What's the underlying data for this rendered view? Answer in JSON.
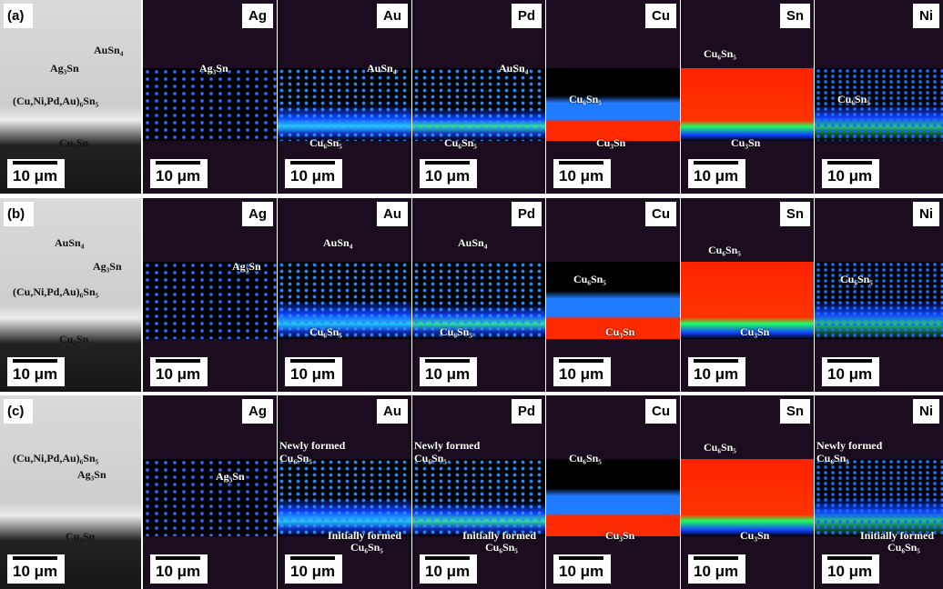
{
  "rows": [
    {
      "label": "(a)",
      "panels": [
        {
          "scale_bar": "10 μm",
          "annotations": [
            "Ag₃Sn",
            "AuSn₄",
            "(Cu,Ni,Pd,Au)₆Sn₅",
            "Cu₃Sn"
          ]
        },
        {
          "element": "Ag",
          "scale_bar": "10 μm",
          "annotations": [
            "Ag₃Sn"
          ]
        },
        {
          "element": "Au",
          "scale_bar": "10 μm",
          "annotations": [
            "AuSn₄",
            "Cu₆Sn₅"
          ]
        },
        {
          "element": "Pd",
          "scale_bar": "10 μm",
          "annotations": [
            "AuSn₄",
            "Cu₆Sn₅"
          ]
        },
        {
          "element": "Cu",
          "scale_bar": "10 μm",
          "annotations": [
            "Cu₆Sn₅",
            "Cu₃Sn"
          ]
        },
        {
          "element": "Sn",
          "scale_bar": "10 μm",
          "annotations": [
            "Cu₆Sn₅",
            "Cu₃Sn"
          ]
        },
        {
          "element": "Ni",
          "scale_bar": "10 μm",
          "annotations": [
            "Cu₆Sn₅"
          ]
        }
      ]
    },
    {
      "label": "(b)",
      "panels": [
        {
          "scale_bar": "10 μm",
          "annotations": [
            "AuSn₄",
            "Ag₃Sn",
            "(Cu,Ni,Pd,Au)₆Sn₅",
            "Cu₃Sn"
          ]
        },
        {
          "element": "Ag",
          "scale_bar": "10 μm",
          "annotations": [
            "Ag₃Sn"
          ]
        },
        {
          "element": "Au",
          "scale_bar": "10 μm",
          "annotations": [
            "AuSn₄",
            "Cu₆Sn₅"
          ]
        },
        {
          "element": "Pd",
          "scale_bar": "10 μm",
          "annotations": [
            "AuSn₄",
            "Cu₆Sn₅"
          ]
        },
        {
          "element": "Cu",
          "scale_bar": "10 μm",
          "annotations": [
            "Cu₆Sn₅",
            "Cu₃Sn"
          ]
        },
        {
          "element": "Sn",
          "scale_bar": "10 μm",
          "annotations": [
            "Cu₆Sn₅",
            "Cu₃Sn"
          ]
        },
        {
          "element": "Ni",
          "scale_bar": "10 μm",
          "annotations": [
            "Cu₆Sn₅"
          ]
        }
      ]
    },
    {
      "label": "(c)",
      "panels": [
        {
          "scale_bar": "10 μm",
          "annotations": [
            "(Cu,Ni,Pd,Au)₆Sn₅",
            "Ag₃Sn",
            "Cu₃Sn"
          ]
        },
        {
          "element": "Ag",
          "scale_bar": "10 μm",
          "annotations": [
            "Ag₃Sn"
          ]
        },
        {
          "element": "Au",
          "scale_bar": "10 μm",
          "annotations": [
            "Newly formed",
            "Cu₆Sn₅",
            "Initially formed",
            "Cu₆Sn₅"
          ]
        },
        {
          "element": "Pd",
          "scale_bar": "10 μm",
          "annotations": [
            "Newly formed",
            "Cu₆Sn₅",
            "Initially formed",
            "Cu₆Sn₅"
          ]
        },
        {
          "element": "Cu",
          "scale_bar": "10 μm",
          "annotations": [
            "Cu₆Sn₅",
            "Cu₃Sn"
          ]
        },
        {
          "element": "Sn",
          "scale_bar": "10 μm",
          "annotations": [
            "Cu₆Sn₅",
            "Cu₃Sn"
          ]
        },
        {
          "element": "Ni",
          "scale_bar": "10 μm",
          "annotations": [
            "Newly formed",
            "Cu₆Sn₅",
            "Initially formed",
            "Cu₆Sn₅"
          ]
        }
      ]
    }
  ]
}
